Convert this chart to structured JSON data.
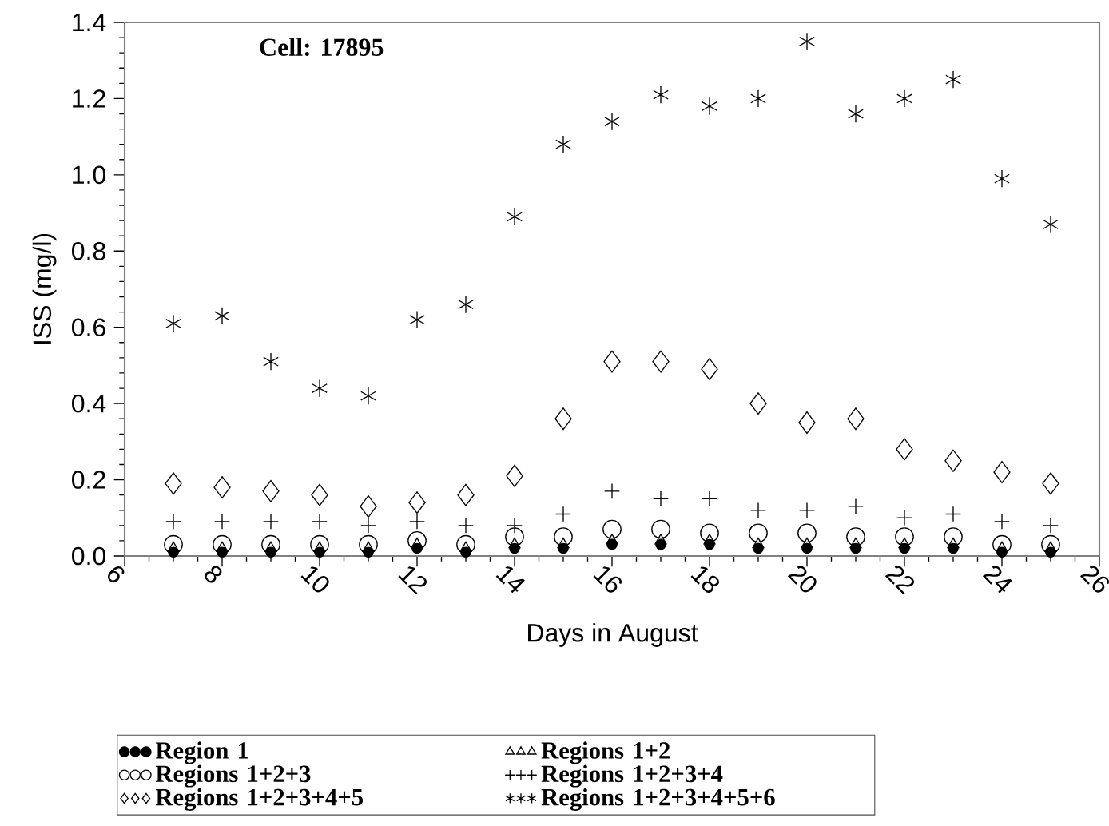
{
  "chart_data": {
    "type": "scatter",
    "xlabel": "Days in August",
    "ylabel": "ISS (mg/l)",
    "annotations": [
      "Cell: 17895"
    ],
    "x": [
      7,
      8,
      9,
      10,
      11,
      12,
      13,
      14,
      15,
      16,
      17,
      18,
      19,
      20,
      21,
      22,
      23,
      24,
      25
    ],
    "xlim": [
      6,
      26
    ],
    "xticks": [
      6,
      8,
      10,
      12,
      14,
      16,
      18,
      20,
      22,
      24,
      26
    ],
    "ylim": [
      0,
      1.4
    ],
    "yticks": [
      {
        "value": 0,
        "label": "0.0"
      },
      {
        "value": 0.2,
        "label": "0.2"
      },
      {
        "value": 0.4,
        "label": "0.4"
      },
      {
        "value": 0.6,
        "label": "0.6"
      },
      {
        "value": 0.8,
        "label": "0.8"
      },
      {
        "value": 1.0,
        "label": "1.0"
      },
      {
        "value": 1.2,
        "label": "1.2"
      },
      {
        "value": 1.4,
        "label": "1.4"
      }
    ],
    "grid": false,
    "legend": "bottom",
    "series": [
      {
        "name": "Region 1",
        "color": "#000000",
        "marker": "circle",
        "values": [
          0.01,
          0.01,
          0.01,
          0.01,
          0.01,
          0.02,
          0.01,
          0.02,
          0.02,
          0.03,
          0.03,
          0.03,
          0.02,
          0.02,
          0.02,
          0.02,
          0.02,
          0.01,
          0.01
        ]
      },
      {
        "name": "Regions 1+2",
        "color": "#000000",
        "marker": "triangle",
        "values": [
          0.02,
          0.02,
          0.02,
          0.02,
          0.02,
          0.03,
          0.02,
          0.03,
          0.03,
          0.04,
          0.04,
          0.04,
          0.03,
          0.03,
          0.03,
          0.03,
          0.03,
          0.02,
          0.02
        ]
      },
      {
        "name": "Regions 1+2+3",
        "color": "#000000",
        "marker": "circle",
        "values": [
          0.03,
          0.03,
          0.03,
          0.03,
          0.03,
          0.04,
          0.03,
          0.05,
          0.05,
          0.07,
          0.07,
          0.06,
          0.06,
          0.06,
          0.05,
          0.05,
          0.05,
          0.03,
          0.03
        ]
      },
      {
        "name": "Regions 1+2+3+4",
        "color": "#000000",
        "marker": "cross",
        "values": [
          0.09,
          0.09,
          0.09,
          0.09,
          0.08,
          0.09,
          0.08,
          0.08,
          0.11,
          0.17,
          0.15,
          0.15,
          0.12,
          0.12,
          0.13,
          0.1,
          0.11,
          0.09,
          0.08
        ]
      },
      {
        "name": "Regions 1+2+3+4+5",
        "color": "#000000",
        "marker": "diamond",
        "values": [
          0.19,
          0.18,
          0.17,
          0.16,
          0.13,
          0.14,
          0.16,
          0.21,
          0.36,
          0.51,
          0.51,
          0.49,
          0.4,
          0.35,
          0.36,
          0.28,
          0.25,
          0.22,
          0.19
        ]
      },
      {
        "name": "Regions 1+2+3+4+5+6",
        "color": "#000000",
        "values": [
          0.61,
          0.63,
          0.51,
          0.44,
          0.42,
          0.62,
          0.66,
          0.89,
          1.08,
          1.14,
          1.21,
          1.18,
          1.2,
          1.35,
          1.16,
          1.2,
          1.25,
          0.99,
          0.87
        ]
      }
    ]
  }
}
